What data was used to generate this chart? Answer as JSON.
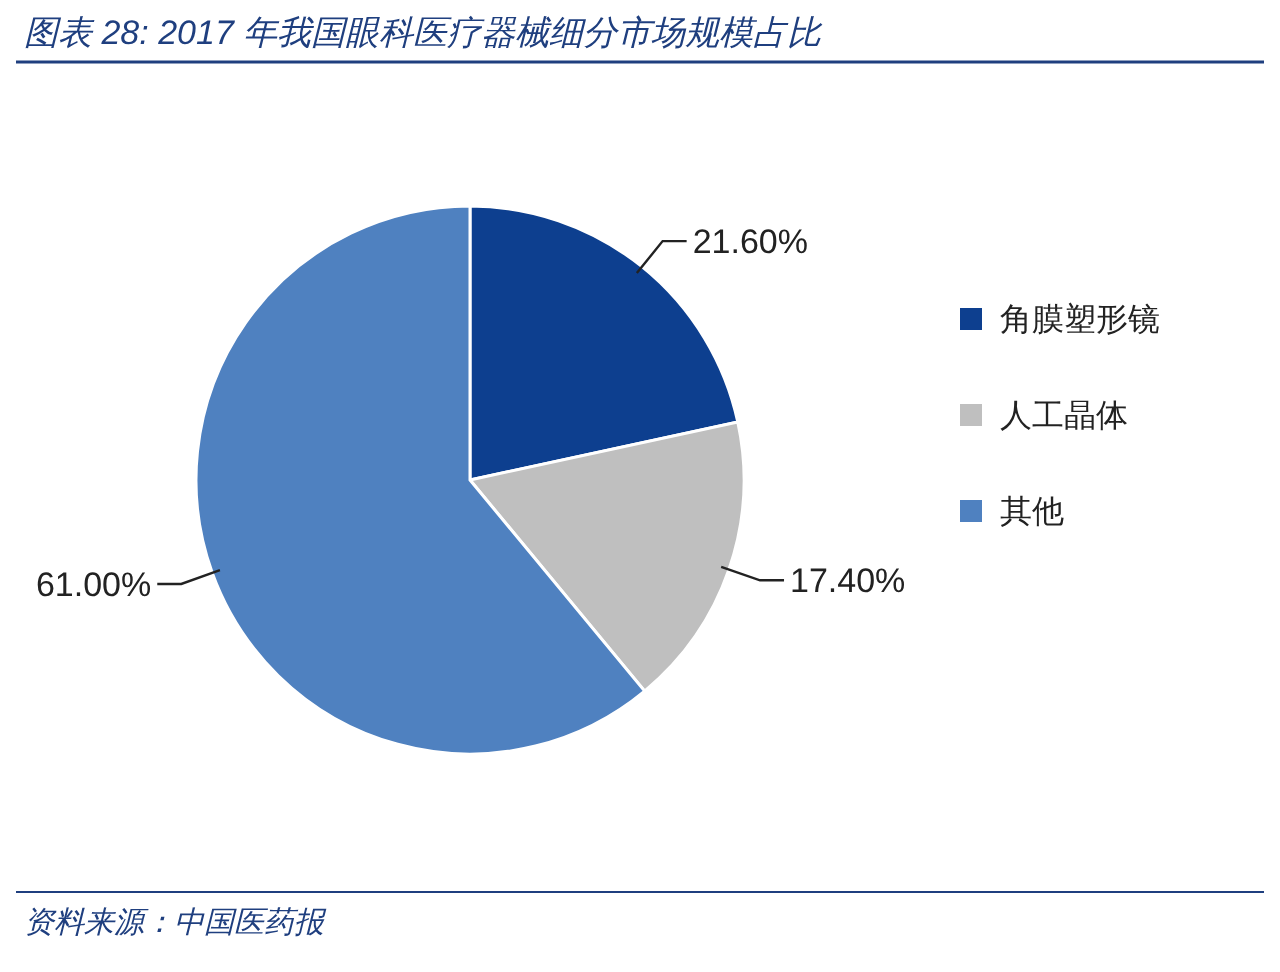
{
  "chart_data": {
    "type": "pie",
    "title": "图表 28:  2017 年我国眼科医疗器械细分市场规模占比",
    "categories": [
      "角膜塑形镜",
      "人工晶体",
      "其他"
    ],
    "values": [
      21.6,
      17.4,
      61.0
    ],
    "colors": [
      "#0d3f8f",
      "#bfbfbf",
      "#4f81c0"
    ],
    "value_labels": [
      "21.60%",
      "17.40%",
      "61.00%"
    ],
    "legend": "right",
    "annotations": [
      "资料来源：中国医药报"
    ]
  }
}
